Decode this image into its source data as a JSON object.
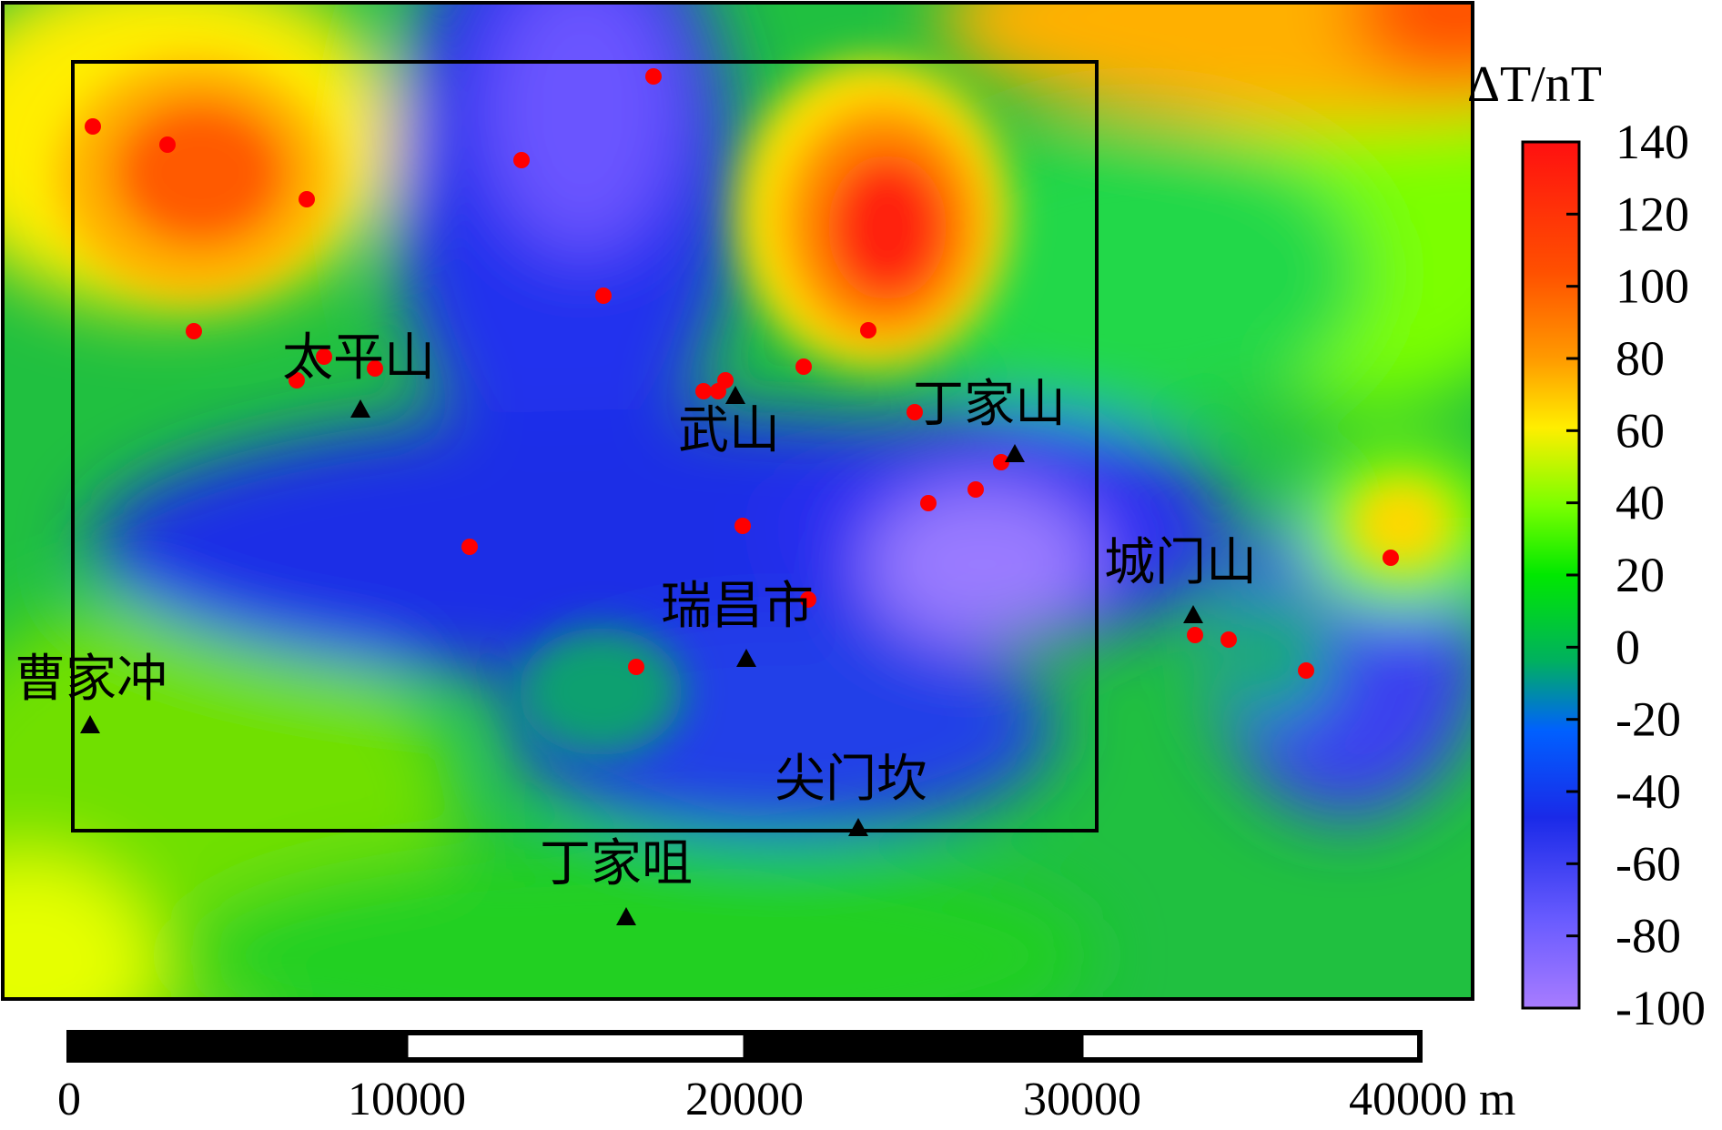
{
  "map": {
    "places": [
      {
        "name": "太平山"
      },
      {
        "name": "武山"
      },
      {
        "name": "丁家山"
      },
      {
        "name": "瑞昌市"
      },
      {
        "name": "城门山"
      },
      {
        "name": "曹家冲"
      },
      {
        "name": "尖门坎"
      },
      {
        "name": "丁家咀"
      }
    ],
    "samples_count": 28
  },
  "legend": {
    "title": "ΔT/nT",
    "ticks": [
      "140",
      "120",
      "100",
      "80",
      "60",
      "40",
      "20",
      "0",
      "-20",
      "-40",
      "-60",
      "-80",
      "-100"
    ],
    "colors": [
      "#ff1a1a",
      "#ff5a0a",
      "#ffa000",
      "#ffff00",
      "#00e600",
      "#0055ff",
      "#2020e0",
      "#a080ff"
    ]
  },
  "scalebar": {
    "labels": [
      "0",
      "10000",
      "20000",
      "30000",
      "40000 m"
    ]
  },
  "colors": {
    "sample_point": "#ff0000",
    "station_marker": "#000000",
    "frame": "#000000"
  }
}
